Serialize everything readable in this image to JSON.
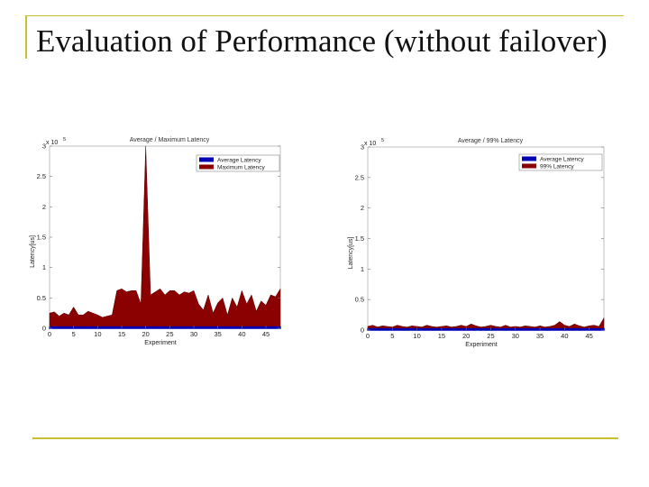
{
  "slide": {
    "title": "Evaluation of Performance (without failover)"
  },
  "colors": {
    "average": "#0000b4",
    "peak": "#8b0000",
    "accent": "#c8c030"
  },
  "chart_data": [
    {
      "type": "area",
      "title": "Average / Maximum Latency",
      "xlabel": "Experiment",
      "ylabel": "Latency[us]",
      "exponent_label": "x 10",
      "exponent_power": "5",
      "xlim": [
        0,
        48
      ],
      "ylim": [
        0,
        3
      ],
      "xticks": [
        "0",
        "5",
        "10",
        "15",
        "20",
        "25",
        "30",
        "35",
        "40",
        "45"
      ],
      "yticks": [
        "0",
        "0.5",
        "1",
        "1.5",
        "2",
        "2.5",
        "3"
      ],
      "legend_position": "top-right",
      "x": [
        0,
        1,
        2,
        3,
        4,
        5,
        6,
        7,
        8,
        9,
        10,
        11,
        12,
        13,
        14,
        15,
        16,
        17,
        18,
        19,
        20,
        21,
        22,
        23,
        24,
        25,
        26,
        27,
        28,
        29,
        30,
        31,
        32,
        33,
        34,
        35,
        36,
        37,
        38,
        39,
        40,
        41,
        42,
        43,
        44,
        45,
        46,
        47,
        48
      ],
      "series": [
        {
          "name": "Average Latency",
          "color": "#0000b4",
          "values": [
            0.02,
            0.02,
            0.02,
            0.02,
            0.02,
            0.02,
            0.02,
            0.02,
            0.02,
            0.02,
            0.02,
            0.02,
            0.02,
            0.02,
            0.02,
            0.02,
            0.02,
            0.02,
            0.02,
            0.02,
            0.02,
            0.02,
            0.02,
            0.02,
            0.02,
            0.02,
            0.02,
            0.02,
            0.02,
            0.02,
            0.02,
            0.02,
            0.02,
            0.02,
            0.02,
            0.02,
            0.02,
            0.02,
            0.02,
            0.02,
            0.02,
            0.02,
            0.02,
            0.02,
            0.02,
            0.02,
            0.02,
            0.02,
            0.02
          ]
        },
        {
          "name": "Maximum Latency",
          "color": "#8b0000",
          "values": [
            0.25,
            0.27,
            0.2,
            0.25,
            0.22,
            0.35,
            0.22,
            0.22,
            0.28,
            0.25,
            0.22,
            0.18,
            0.2,
            0.22,
            0.62,
            0.65,
            0.6,
            0.62,
            0.62,
            0.4,
            3.0,
            0.55,
            0.6,
            0.65,
            0.55,
            0.62,
            0.62,
            0.55,
            0.6,
            0.58,
            0.62,
            0.4,
            0.3,
            0.55,
            0.25,
            0.42,
            0.5,
            0.22,
            0.5,
            0.35,
            0.62,
            0.4,
            0.55,
            0.28,
            0.45,
            0.38,
            0.55,
            0.52,
            0.65
          ]
        }
      ]
    },
    {
      "type": "area",
      "title": "Average / 99% Latency",
      "xlabel": "Experiment",
      "ylabel": "Latency[us]",
      "exponent_label": "x 10",
      "exponent_power": "5",
      "xlim": [
        0,
        48
      ],
      "ylim": [
        0,
        3
      ],
      "xticks": [
        "0",
        "5",
        "10",
        "15",
        "20",
        "25",
        "30",
        "35",
        "40",
        "45"
      ],
      "yticks": [
        "0",
        "0.5",
        "1",
        "1.5",
        "2",
        "2.5",
        "3"
      ],
      "legend_position": "top-right",
      "x": [
        0,
        1,
        2,
        3,
        4,
        5,
        6,
        7,
        8,
        9,
        10,
        11,
        12,
        13,
        14,
        15,
        16,
        17,
        18,
        19,
        20,
        21,
        22,
        23,
        24,
        25,
        26,
        27,
        28,
        29,
        30,
        31,
        32,
        33,
        34,
        35,
        36,
        37,
        38,
        39,
        40,
        41,
        42,
        43,
        44,
        45,
        46,
        47,
        48
      ],
      "series": [
        {
          "name": "Average Latency",
          "color": "#0000b4",
          "values": [
            0.02,
            0.02,
            0.02,
            0.02,
            0.02,
            0.02,
            0.02,
            0.02,
            0.02,
            0.02,
            0.02,
            0.02,
            0.02,
            0.02,
            0.02,
            0.02,
            0.02,
            0.02,
            0.02,
            0.02,
            0.02,
            0.02,
            0.02,
            0.02,
            0.02,
            0.02,
            0.02,
            0.02,
            0.02,
            0.02,
            0.02,
            0.02,
            0.02,
            0.02,
            0.02,
            0.02,
            0.02,
            0.02,
            0.02,
            0.02,
            0.02,
            0.02,
            0.02,
            0.02,
            0.02,
            0.02,
            0.02,
            0.02,
            0.02
          ]
        },
        {
          "name": "99% Latency",
          "color": "#8b0000",
          "values": [
            0.06,
            0.08,
            0.05,
            0.07,
            0.06,
            0.05,
            0.08,
            0.06,
            0.05,
            0.07,
            0.06,
            0.05,
            0.08,
            0.06,
            0.05,
            0.06,
            0.07,
            0.05,
            0.06,
            0.08,
            0.06,
            0.1,
            0.07,
            0.05,
            0.06,
            0.08,
            0.06,
            0.05,
            0.08,
            0.05,
            0.06,
            0.05,
            0.07,
            0.06,
            0.05,
            0.07,
            0.05,
            0.06,
            0.08,
            0.14,
            0.08,
            0.06,
            0.1,
            0.07,
            0.05,
            0.07,
            0.08,
            0.06,
            0.2
          ]
        }
      ]
    }
  ]
}
